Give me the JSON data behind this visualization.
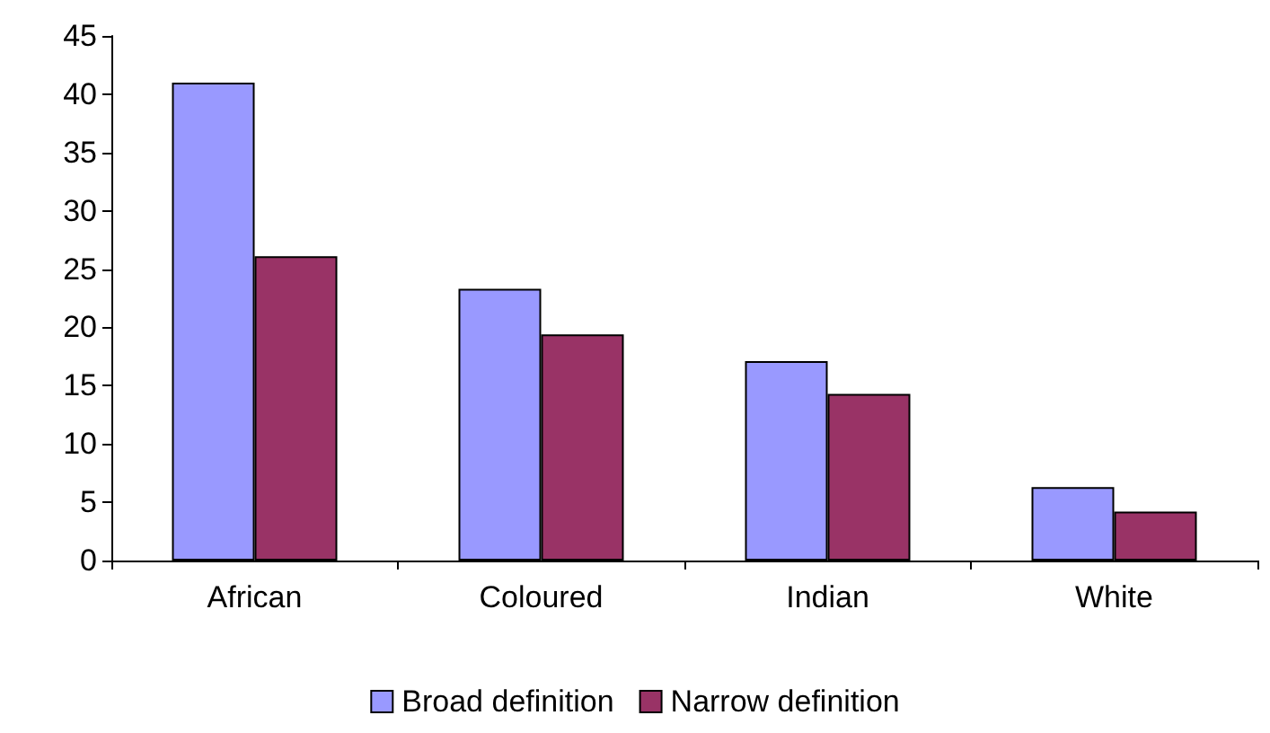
{
  "chart_data": {
    "type": "bar",
    "categories": [
      "African",
      "Coloured",
      "Indian",
      "White"
    ],
    "series": [
      {
        "name": "Broad definition",
        "color": "#9999ff",
        "values": [
          41,
          23.3,
          17.1,
          6.3
        ]
      },
      {
        "name": "Narrow definition",
        "color": "#993366",
        "values": [
          26.1,
          19.4,
          14.3,
          4.2
        ]
      }
    ],
    "ylim": [
      0,
      45
    ],
    "yticks": [
      0,
      5,
      10,
      15,
      20,
      25,
      30,
      35,
      40,
      45
    ],
    "grid": false,
    "legend": "bottom"
  }
}
